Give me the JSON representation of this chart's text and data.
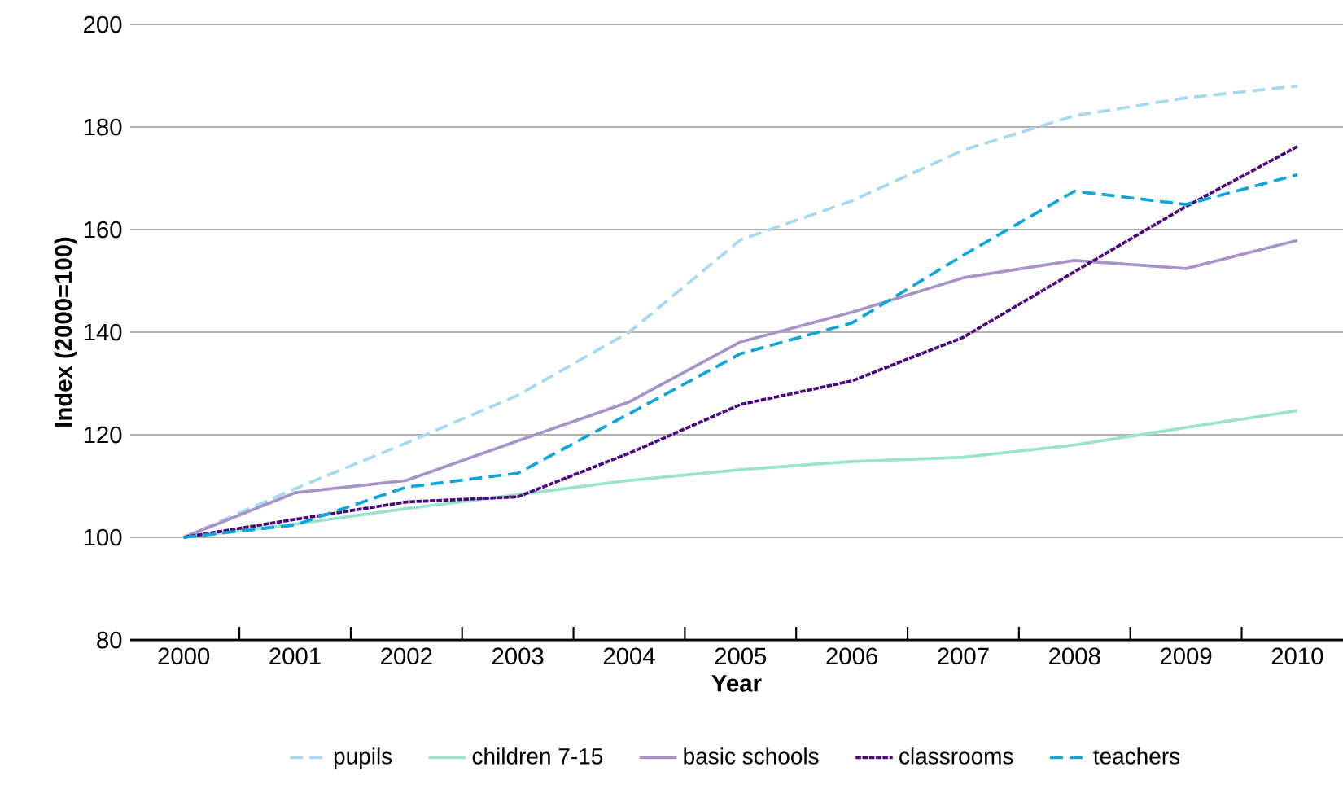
{
  "chart_data": {
    "type": "line",
    "xlabel": "Year",
    "ylabel": "Index (2000=100)",
    "categories": [
      "2000",
      "2001",
      "2002",
      "2003",
      "2004",
      "2005",
      "2006",
      "2007",
      "2008",
      "2009",
      "2010"
    ],
    "series": [
      {
        "name": "pupils",
        "color": "#a6d8f0",
        "line_style": "dashed",
        "values": [
          100,
          109.5,
          118.4,
          127.7,
          140,
          158,
          165.6,
          175.5,
          182.2,
          185.7,
          188
        ]
      },
      {
        "name": "children 7-15",
        "color": "#9be3cf",
        "line_style": "solid",
        "values": [
          100,
          102.6,
          105.6,
          108.3,
          111.1,
          113.2,
          114.8,
          115.6,
          118,
          121.4,
          124.7
        ]
      },
      {
        "name": "basic schools",
        "color": "#a893c8",
        "line_style": "solid",
        "values": [
          100,
          108.7,
          111.1,
          118.8,
          126.4,
          138.1,
          143.9,
          150.6,
          154,
          152.4,
          157.9
        ]
      },
      {
        "name": "classrooms",
        "color": "#4b0a7c",
        "line_style": "dotted",
        "values": [
          100,
          103.5,
          106.9,
          107.9,
          116.4,
          125.9,
          130.5,
          139,
          151.8,
          164.5,
          176.2
        ]
      },
      {
        "name": "teachers",
        "color": "#10a5d8",
        "line_style": "dashed",
        "values": [
          100,
          102.4,
          109.8,
          112.5,
          124.1,
          135.8,
          141.8,
          155,
          167.5,
          164.9,
          170.7
        ]
      }
    ],
    "ylim": [
      80,
      200
    ],
    "yticks": [
      80,
      100,
      120,
      140,
      160,
      180,
      200
    ],
    "grid": "y",
    "legend": "bottom",
    "marker": "none"
  }
}
